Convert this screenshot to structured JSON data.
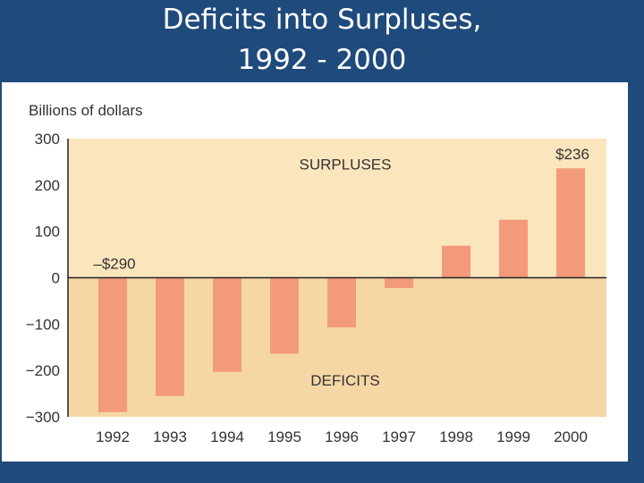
{
  "slide": {
    "title_line1": "Deficits into Surpluses,",
    "title_line2": "1992 - 2000"
  },
  "colors": {
    "background": "#1f4a7c",
    "surplus_region": "#fbe5bd",
    "deficit_region": "#f5d7a6",
    "bar": "#f39a7a",
    "axis": "#222222",
    "text": "#333333"
  },
  "chart_data": {
    "type": "bar",
    "ylabel": "Billions of dollars",
    "ylim": [
      -300,
      300
    ],
    "yticks": [
      300,
      200,
      100,
      0,
      -100,
      -200,
      -300
    ],
    "ytick_labels": [
      "300",
      "200",
      "100",
      "0",
      "−100",
      "−200",
      "−300"
    ],
    "categories": [
      "1992",
      "1993",
      "1994",
      "1995",
      "1996",
      "1997",
      "1998",
      "1999",
      "2000"
    ],
    "values": [
      -290,
      -255,
      -203,
      -164,
      -107,
      -22,
      69,
      125,
      236
    ],
    "region_labels": {
      "surplus": "SURPLUSES",
      "deficit": "DEFICITS"
    },
    "annotations": [
      {
        "text": "–$290",
        "category": "1992"
      },
      {
        "text": "$236",
        "category": "2000"
      }
    ],
    "grid": false,
    "legend": "none"
  }
}
